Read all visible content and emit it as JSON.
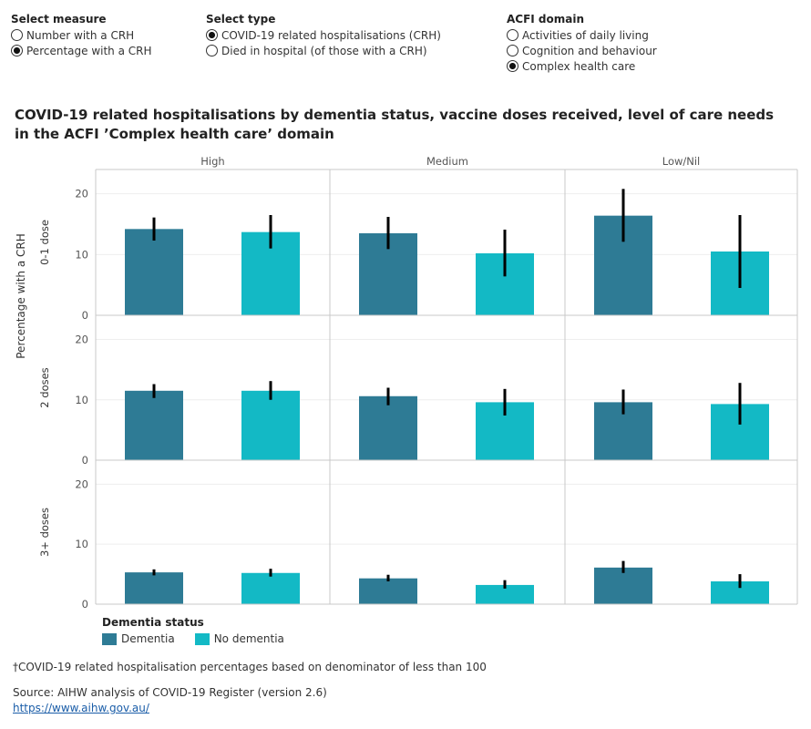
{
  "controls": {
    "measure": {
      "label": "Select measure",
      "options": [
        "Number with a CRH",
        "Percentage with a CRH"
      ],
      "selected": 1
    },
    "type": {
      "label": "Select type",
      "options": [
        "COVID-19 related hospitalisations (CRH)",
        "Died in hospital (of those with a CRH)"
      ],
      "selected": 0
    },
    "domain": {
      "label": "ACFI domain",
      "options": [
        "Activities of daily living",
        "Cognition and behaviour",
        "Complex health care"
      ],
      "selected": 2
    }
  },
  "title": "COVID-19 related hospitalisations by dementia status, vaccine doses received, level of care needs in the ACFI ’Complex health care’ domain",
  "chart_data": {
    "type": "bar",
    "ylabel": "Percentage with a CRH",
    "ylim": [
      0,
      24
    ],
    "yticks": [
      0,
      10,
      20
    ],
    "columns": [
      "High",
      "Medium",
      "Low/Nil"
    ],
    "rows": [
      "0-1 dose",
      "2 doses",
      "3+ doses"
    ],
    "series": [
      {
        "name": "Dementia",
        "color": "#2e7b95"
      },
      {
        "name": "No dementia",
        "color": "#13b9c5"
      }
    ],
    "values": {
      "0-1 dose": {
        "High": [
          {
            "v": 14.2,
            "lo": 12.3,
            "hi": 16.1
          },
          {
            "v": 13.7,
            "lo": 11.0,
            "hi": 16.5
          }
        ],
        "Medium": [
          {
            "v": 13.5,
            "lo": 10.9,
            "hi": 16.2
          },
          {
            "v": 10.2,
            "lo": 6.4,
            "hi": 14.1
          }
        ],
        "Low/Nil": [
          {
            "v": 16.4,
            "lo": 12.1,
            "hi": 20.8
          },
          {
            "v": 10.5,
            "lo": 4.5,
            "hi": 16.5
          }
        ]
      },
      "2 doses": {
        "High": [
          {
            "v": 11.5,
            "lo": 10.3,
            "hi": 12.6
          },
          {
            "v": 11.5,
            "lo": 10.0,
            "hi": 13.1
          }
        ],
        "Medium": [
          {
            "v": 10.6,
            "lo": 9.1,
            "hi": 12.0
          },
          {
            "v": 9.6,
            "lo": 7.4,
            "hi": 11.8
          }
        ],
        "Low/Nil": [
          {
            "v": 9.6,
            "lo": 7.6,
            "hi": 11.7
          },
          {
            "v": 9.3,
            "lo": 5.9,
            "hi": 12.8
          }
        ]
      },
      "3+ doses": {
        "High": [
          {
            "v": 5.3,
            "lo": 4.8,
            "hi": 5.8
          },
          {
            "v": 5.2,
            "lo": 4.6,
            "hi": 5.9
          }
        ],
        "Medium": [
          {
            "v": 4.3,
            "lo": 3.8,
            "hi": 4.9
          },
          {
            "v": 3.2,
            "lo": 2.6,
            "hi": 4.0
          }
        ],
        "Low/Nil": [
          {
            "v": 6.1,
            "lo": 5.2,
            "hi": 7.2
          },
          {
            "v": 3.8,
            "lo": 2.7,
            "hi": 5.0
          }
        ]
      }
    }
  },
  "legend": {
    "title": "Dementia status",
    "items": [
      "Dementia",
      "No dementia"
    ]
  },
  "note": "†COVID-19 related hospitalisation percentages based on denominator of less than 100",
  "source": "Source: AIHW analysis of COVID-19 Register (version 2.6)",
  "link": "https://www.aihw.gov.au/"
}
